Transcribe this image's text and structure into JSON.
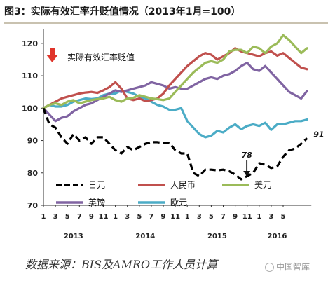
{
  "title": "图3：实际有效汇率升贬值情况（2013年1月=100）",
  "source": "数据来源：BIS及AMRO工作人员计算",
  "watermark": "中国智库",
  "chart_data": {
    "type": "line",
    "x_tick_labels": [
      "1",
      "3",
      "5",
      "7",
      "9",
      "11",
      "1",
      "3",
      "5",
      "7",
      "9",
      "11",
      "1",
      "3",
      "5",
      "7",
      "9",
      "11",
      "1",
      "3",
      "5"
    ],
    "year_labels": [
      {
        "label": "2013",
        "month_index": 5
      },
      {
        "label": "2014",
        "month_index": 17
      },
      {
        "label": "2015",
        "month_index": 29
      },
      {
        "label": "2016",
        "month_index": 39
      }
    ],
    "x_start": "2013-01",
    "y_ticks": [
      70,
      80,
      90,
      100,
      110,
      120
    ],
    "ylim": [
      70,
      123
    ],
    "grid": false,
    "annotations": {
      "depreciation_label": "实际有效汇率贬值",
      "low_value": "78",
      "end_value": "91"
    },
    "series": [
      {
        "name": "日元",
        "color": "#000000",
        "dash": true,
        "values": [
          100,
          95,
          94,
          91,
          89,
          92,
          90,
          91,
          89,
          91,
          91,
          89,
          87,
          86,
          88,
          87,
          88,
          89,
          89.5,
          89.5,
          89.2,
          89.3,
          87,
          86,
          86,
          80,
          79,
          81,
          81,
          80.8,
          81,
          80.5,
          79.5,
          78,
          79,
          80,
          83,
          82.5,
          81.5,
          82,
          85,
          87,
          87.5,
          89,
          90.7
        ]
      },
      {
        "name": "人民币",
        "color": "#c0504d",
        "dash": false,
        "values": [
          100,
          101,
          102,
          103,
          103.5,
          104,
          104.5,
          104.8,
          105,
          104.7,
          105.5,
          106.5,
          108,
          106,
          103,
          102.5,
          103,
          102.2,
          102.5,
          103,
          104.5,
          107,
          109,
          111,
          113,
          114.5,
          116,
          117,
          116.5,
          115,
          116,
          117,
          118.5,
          117.5,
          117,
          116.5,
          116,
          117,
          117.5,
          116.2,
          117,
          115.5,
          114,
          112.5,
          112
        ]
      },
      {
        "name": "美元",
        "color": "#9bbb59",
        "dash": false,
        "values": [
          100,
          101,
          101.5,
          101,
          102,
          102.5,
          101.5,
          102,
          102.5,
          102.8,
          103,
          103.5,
          102.5,
          102,
          103,
          103.2,
          104,
          103.5,
          103,
          102.8,
          102.5,
          103,
          105,
          107,
          109,
          111,
          112.5,
          114,
          114.5,
          114,
          115,
          117.5,
          118,
          118,
          117,
          119,
          118.5,
          117,
          119,
          120,
          122.5,
          121,
          119,
          117,
          118.5
        ]
      },
      {
        "name": "英镑",
        "color": "#8064a2",
        "dash": false,
        "values": [
          100,
          98,
          96,
          97,
          97.5,
          99,
          100,
          101,
          101.5,
          102.5,
          103.5,
          104.5,
          105.5,
          105,
          105.5,
          106,
          106.5,
          107,
          108,
          107.5,
          107,
          106,
          106.5,
          106,
          106,
          107,
          108,
          109,
          109.5,
          109,
          110,
          110.5,
          111.5,
          113,
          114,
          112,
          111.5,
          113,
          111,
          109,
          107,
          105,
          104,
          103,
          105.3
        ]
      },
      {
        "name": "欧元",
        "color": "#4bacc6",
        "dash": false,
        "values": [
          100,
          101,
          100.5,
          100.5,
          101,
          102,
          102.5,
          103,
          102.8,
          103,
          104,
          104.5,
          104.5,
          105.5,
          105,
          104.5,
          103.5,
          103,
          102,
          101,
          100.5,
          99.5,
          99.5,
          100,
          96,
          94,
          92,
          91,
          91.5,
          93,
          92.5,
          94,
          95,
          93.5,
          94.5,
          95,
          94.5,
          95.5,
          93.3,
          95,
          95,
          95.5,
          96,
          96,
          96.5
        ]
      }
    ]
  }
}
